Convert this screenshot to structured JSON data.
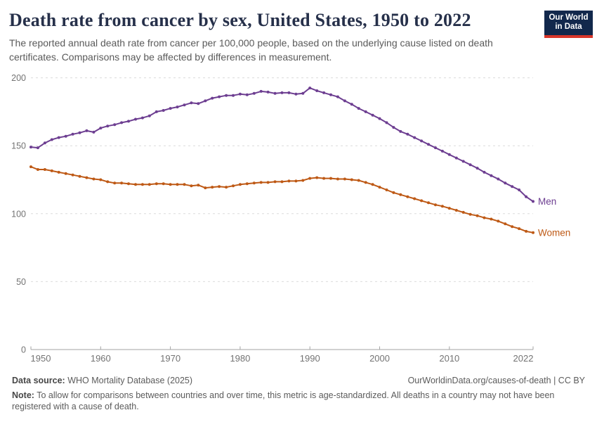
{
  "header": {
    "title": "Death rate from cancer by sex, United States, 1950 to 2022",
    "subtitle": "The reported annual death rate from cancer per 100,000 people, based on the underlying cause listed on death certificates. Comparisons may be affected by differences in measurement.",
    "logo": {
      "line1": "Our World",
      "line2": "in Data",
      "bg_color": "#12284c",
      "accent_color": "#d9362b"
    }
  },
  "chart_data": {
    "type": "line",
    "title": "Death rate from cancer by sex, United States, 1950 to 2022",
    "xlabel": "",
    "ylabel": "",
    "ylim": [
      0,
      200
    ],
    "y_ticks": [
      0,
      50,
      100,
      150,
      200
    ],
    "x_ticks": [
      1950,
      1960,
      1970,
      1980,
      1990,
      2000,
      2010,
      2022
    ],
    "grid": "horizontal-dashed",
    "legend_position": "line-end-labels",
    "gridline_color": "#dcdcdc",
    "axis_color": "#a3a3a3",
    "tick_label_color": "#737373",
    "x": [
      1950,
      1951,
      1952,
      1953,
      1954,
      1955,
      1956,
      1957,
      1958,
      1959,
      1960,
      1961,
      1962,
      1963,
      1964,
      1965,
      1966,
      1967,
      1968,
      1969,
      1970,
      1971,
      1972,
      1973,
      1974,
      1975,
      1976,
      1977,
      1978,
      1979,
      1980,
      1981,
      1982,
      1983,
      1984,
      1985,
      1986,
      1987,
      1988,
      1989,
      1990,
      1991,
      1992,
      1993,
      1994,
      1995,
      1996,
      1997,
      1998,
      1999,
      2000,
      2001,
      2002,
      2003,
      2004,
      2005,
      2006,
      2007,
      2008,
      2009,
      2010,
      2011,
      2012,
      2013,
      2014,
      2015,
      2016,
      2017,
      2018,
      2019,
      2020,
      2021,
      2022
    ],
    "series": [
      {
        "name": "Men",
        "color": "#6d3e91",
        "values": [
          149,
          148.5,
          152,
          154.5,
          156,
          157,
          158.5,
          159.5,
          161,
          160,
          163,
          164.5,
          165.5,
          167,
          168,
          169.5,
          170.5,
          172,
          175,
          176,
          177.5,
          178.5,
          180,
          181.5,
          181,
          183,
          185,
          186,
          187,
          187,
          188,
          187.5,
          188.5,
          190,
          189.5,
          188.5,
          189,
          189,
          188,
          188.5,
          192.5,
          190.5,
          189,
          187.5,
          186,
          183,
          180.5,
          177.5,
          175,
          172.5,
          170,
          167,
          163.5,
          160.5,
          158.5,
          156,
          153.5,
          151,
          148.5,
          146,
          143.5,
          141,
          138.5,
          136,
          133.5,
          130.5,
          128,
          125.5,
          122.5,
          120,
          117.5,
          112.5,
          109
        ]
      },
      {
        "name": "Women",
        "color": "#be5915",
        "values": [
          134.5,
          132.5,
          132.5,
          131.5,
          130.5,
          129.5,
          128.5,
          127.5,
          126.5,
          125.5,
          125,
          123.5,
          122.5,
          122.5,
          122,
          121.5,
          121.5,
          121.5,
          122,
          122,
          121.5,
          121.5,
          121.5,
          120.5,
          121,
          119,
          119.5,
          120,
          119.5,
          120.5,
          121.5,
          122,
          122.5,
          123,
          123,
          123.5,
          123.5,
          124,
          124,
          124.5,
          126,
          126.5,
          126,
          126,
          125.5,
          125.5,
          125,
          124.5,
          123,
          121.5,
          119.5,
          117.5,
          115.5,
          114,
          112.5,
          111,
          109.5,
          108,
          106.5,
          105.5,
          104,
          102.5,
          101,
          99.5,
          98.5,
          97,
          96,
          94.5,
          92.5,
          90.5,
          89,
          87,
          86
        ]
      }
    ]
  },
  "footer": {
    "data_source_label": "Data source:",
    "data_source": " WHO Mortality Database (2025)",
    "link": "OurWorldinData.org/causes-of-death | CC BY",
    "note_label": "Note:",
    "note": " To allow for comparisons between countries and over time, this metric is age-standardized. All deaths in a country may not have been registered with a cause of death."
  }
}
